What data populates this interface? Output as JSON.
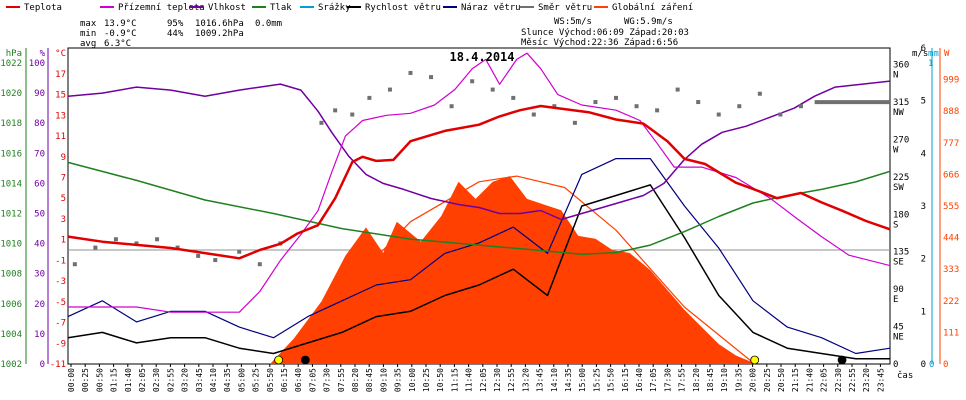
{
  "chart_data": {
    "type": "line",
    "title": "18.4.2014",
    "legend": [
      {
        "name": "Teplota",
        "color": "#e00000"
      },
      {
        "name": "Přízemní teplota",
        "color": "#d000d0"
      },
      {
        "name": "Vlhkost",
        "color": "#7000a0"
      },
      {
        "name": "Tlak",
        "color": "#208020"
      },
      {
        "name": "Srážky",
        "color": "#00a0d0"
      },
      {
        "name": "Rychlost větru",
        "color": "#000000"
      },
      {
        "name": "Náraz větru",
        "color": "#000080"
      },
      {
        "name": "Směr větru",
        "color": "#707070"
      },
      {
        "name": "Globální záření",
        "color": "#ff4000"
      }
    ],
    "stats": {
      "max": {
        "label": "max",
        "temp": "13.9°C",
        "hum": "95%",
        "press": "1016.6hPa",
        "rain": "0.0mm"
      },
      "min": {
        "label": "min",
        "temp": "-0.9°C",
        "hum": "44%",
        "press": "1009.2hPa"
      },
      "avg": {
        "label": "avg",
        "temp": "6.3°C"
      },
      "ws": "WS:5m/s",
      "wg": "WG:5.9m/s",
      "sun": "Slunce Východ:06:09  Západ:20:03",
      "moon": "Měsíc  Východ:22:36  Západ:6:56"
    },
    "axes": {
      "hpa": {
        "unit": "hPa",
        "ticks": [
          "1022",
          "1020",
          "1018",
          "1016",
          "1014",
          "1012",
          "1010",
          "1008",
          "1006",
          "1004",
          "1002"
        ],
        "range": [
          1002,
          1023
        ]
      },
      "pct": {
        "unit": "%",
        "ticks": [
          "100",
          "90",
          "80",
          "70",
          "60",
          "50",
          "40",
          "30",
          "20",
          "10",
          "0"
        ],
        "range": [
          0,
          105
        ]
      },
      "degc": {
        "unit": "°C",
        "ticks": [
          "17",
          "15",
          "13",
          "11",
          "9",
          "7",
          "5",
          "3",
          "1",
          "-1",
          "-3",
          "-5",
          "-7",
          "-9",
          "-11"
        ],
        "range": [
          -11,
          19.5
        ]
      },
      "ms": {
        "unit": "m/s",
        "ticks": [
          "6",
          "5",
          "4",
          "3",
          "2",
          "1",
          "0"
        ],
        "range": [
          0,
          6
        ]
      },
      "dir": {
        "ticks": [
          "360 N",
          "315 NW",
          "270 W",
          "225 SW",
          "180 S",
          "135 SE",
          "90 E",
          "45 NE",
          "0"
        ],
        "range": [
          0,
          380
        ]
      },
      "mm": {
        "unit": "mm",
        "sub": "1",
        "ticks": [
          "0"
        ]
      },
      "wm2": {
        "unit": "W",
        "ticks": [
          "999",
          "888",
          "777",
          "666",
          "555",
          "444",
          "333",
          "222",
          "111",
          "0"
        ],
        "range": [
          0,
          1110
        ]
      },
      "x_unit": "čas",
      "x_ticks": [
        "00:00",
        "00:25",
        "00:50",
        "01:15",
        "01:40",
        "02:05",
        "02:30",
        "02:55",
        "03:20",
        "03:45",
        "04:10",
        "04:35",
        "05:00",
        "05:25",
        "05:50",
        "06:15",
        "06:40",
        "07:05",
        "07:30",
        "07:55",
        "08:20",
        "08:45",
        "09:10",
        "09:35",
        "10:00",
        "10:25",
        "10:50",
        "11:15",
        "11:40",
        "12:05",
        "12:30",
        "12:55",
        "13:20",
        "13:45",
        "14:10",
        "14:35",
        "15:00",
        "15:25",
        "15:50",
        "16:15",
        "16:40",
        "17:05",
        "17:30",
        "17:55",
        "18:20",
        "18:45",
        "19:10",
        "19:35",
        "20:00",
        "20:25",
        "20:50",
        "21:15",
        "21:40",
        "22:05",
        "22:30",
        "22:55",
        "23:20",
        "23:45"
      ]
    },
    "series": {
      "teplota": {
        "x": [
          0,
          1,
          2,
          3,
          4,
          5,
          5.6,
          6.2,
          6.7,
          7.3,
          7.8,
          8.3,
          8.6,
          9.0,
          9.5,
          10,
          11,
          12,
          12.6,
          13.2,
          13.8,
          14.5,
          15.2,
          16,
          16.8,
          17.5,
          18,
          18.6,
          19.5,
          20,
          20.7,
          21.4,
          22,
          22.6,
          23.3,
          24
        ],
        "y": [
          1.3,
          0.8,
          0.5,
          0.2,
          -0.3,
          -0.8,
          0,
          0.6,
          1.6,
          2.4,
          5,
          8.5,
          9,
          8.6,
          8.7,
          10.5,
          11.5,
          12.1,
          12.9,
          13.5,
          13.9,
          13.6,
          13.3,
          12.6,
          12.2,
          10.5,
          8.8,
          8.3,
          6.5,
          5.9,
          5,
          5.5,
          4.6,
          3.8,
          2.8,
          2.0
        ]
      },
      "prizemni": {
        "x": [
          0,
          1,
          2,
          3,
          4,
          5,
          5.6,
          6.2,
          6.8,
          7.3,
          7.7,
          8.1,
          8.6,
          9.3,
          10,
          10.7,
          11.3,
          11.8,
          12.2,
          12.6,
          13.1,
          13.4,
          13.8,
          14.3,
          15,
          16,
          16.7,
          17.2,
          17.7,
          18.5,
          19.5,
          20.5,
          21.3,
          22,
          22.8,
          24
        ],
        "y": [
          -5.5,
          -5.5,
          -5.5,
          -6,
          -6,
          -6,
          -4,
          -1,
          1.5,
          3.8,
          7.5,
          11,
          12.5,
          13,
          13.2,
          14,
          15.5,
          17.5,
          18.4,
          16,
          18.4,
          19,
          17.5,
          15,
          14,
          13.5,
          12.5,
          10.3,
          8,
          8,
          7,
          5,
          3,
          1.3,
          -0.5,
          -1.5
        ]
      },
      "vlhkost": {
        "x": [
          0,
          1,
          2,
          3,
          4,
          5,
          5.6,
          6.2,
          6.8,
          7.3,
          7.7,
          8.2,
          8.7,
          9.2,
          9.8,
          10.6,
          11.4,
          12,
          12.6,
          13.2,
          13.8,
          14.4,
          15,
          15.6,
          16.2,
          16.8,
          17.4,
          18,
          18.5,
          19.1,
          19.8,
          20.5,
          21.2,
          21.8,
          22.4,
          23.2,
          24
        ],
        "y": [
          89,
          90,
          92,
          91,
          89,
          91,
          92,
          93,
          91,
          84,
          77,
          69,
          63,
          60,
          58,
          55,
          53,
          52,
          50,
          50,
          51,
          48,
          50,
          52,
          54,
          56,
          60,
          68,
          73,
          77,
          79,
          82,
          85,
          89,
          92,
          93,
          94
        ]
      },
      "tlak": {
        "x": [
          0,
          2,
          4,
          6,
          8,
          10,
          12,
          14,
          15,
          16,
          17,
          18,
          19,
          20,
          21,
          22,
          23,
          24
        ],
        "y": [
          1015.4,
          1014.2,
          1012.9,
          1012.0,
          1011.0,
          1010.3,
          1009.9,
          1009.5,
          1009.3,
          1009.4,
          1009.9,
          1010.8,
          1011.8,
          1012.7,
          1013.2,
          1013.6,
          1014.1,
          1014.8
        ]
      },
      "zareni": {
        "x": [
          5.9,
          6.6,
          7.4,
          8.1,
          8.7,
          9.2,
          9.6,
          10.3,
          10.9,
          11.4,
          11.9,
          12.4,
          12.9,
          13.4,
          13.9,
          14.4,
          14.9,
          15.4,
          15.9,
          16.4,
          17.0,
          17.5,
          18.0,
          18.5,
          19.0,
          19.5,
          20.1
        ],
        "y": [
          0,
          90,
          220,
          380,
          480,
          390,
          500,
          430,
          520,
          640,
          580,
          640,
          660,
          580,
          560,
          540,
          450,
          440,
          400,
          390,
          330,
          260,
          190,
          130,
          70,
          30,
          0
        ]
      },
      "zareni_teor": {
        "x": [
          6.15,
          8,
          10,
          12,
          13.1,
          14.5,
          16,
          18,
          20.05
        ],
        "y": [
          0,
          250,
          500,
          640,
          660,
          620,
          470,
          200,
          0
        ]
      },
      "rychlost": {
        "x": [
          0,
          1,
          2,
          3,
          4,
          5,
          6,
          7,
          8,
          9,
          10,
          11,
          12,
          13,
          14,
          15,
          16,
          17,
          18,
          19,
          20,
          21,
          22,
          23,
          24
        ],
        "y": [
          0.5,
          0.6,
          0.4,
          0.5,
          0.5,
          0.3,
          0.2,
          0.4,
          0.6,
          0.9,
          1.0,
          1.3,
          1.5,
          1.8,
          1.3,
          3.0,
          3.2,
          3.4,
          2.4,
          1.3,
          0.6,
          0.3,
          0.2,
          0.1,
          0.1
        ]
      },
      "naraz": {
        "x": [
          0,
          1,
          2,
          3,
          4,
          5,
          6,
          7,
          8,
          9,
          10,
          11,
          12,
          13,
          14,
          15,
          16,
          17,
          18,
          19,
          20,
          21,
          22,
          23,
          24
        ],
        "y": [
          0.9,
          1.2,
          0.8,
          1.0,
          1.0,
          0.7,
          0.5,
          0.9,
          1.2,
          1.5,
          1.6,
          2.1,
          2.3,
          2.6,
          2.1,
          3.6,
          3.9,
          3.9,
          3.0,
          2.2,
          1.2,
          0.7,
          0.5,
          0.2,
          0.3
        ]
      },
      "smer_pts": {
        "x": [
          0.2,
          0.8,
          1.4,
          2.0,
          2.6,
          3.2,
          3.8,
          4.3,
          5.0,
          5.6,
          6.2,
          7.4,
          7.8,
          8.3,
          8.8,
          9.4,
          10.0,
          10.6,
          11.2,
          11.8,
          12.4,
          13.0,
          13.6,
          14.2,
          14.8,
          15.4,
          16.0,
          16.6,
          17.2,
          17.8,
          18.4,
          19.0,
          19.6,
          20.2,
          20.8,
          21.4
        ],
        "y": [
          120,
          140,
          150,
          145,
          150,
          140,
          130,
          125,
          135,
          120,
          145,
          290,
          305,
          300,
          320,
          330,
          350,
          345,
          310,
          340,
          330,
          320,
          300,
          310,
          290,
          315,
          320,
          310,
          305,
          330,
          315,
          300,
          310,
          325,
          300,
          310
        ]
      },
      "smer_line": {
        "x": [
          21.8,
          24
        ],
        "y": [
          315,
          315
        ]
      }
    },
    "markers": [
      {
        "name": "sunrise",
        "x": 6.15,
        "color": "#ffff00"
      },
      {
        "name": "moonset",
        "x": 6.93,
        "color": "#000000"
      },
      {
        "name": "sunset",
        "x": 20.05,
        "color": "#ffff00"
      },
      {
        "name": "moonrise",
        "x": 22.6,
        "color": "#000000"
      }
    ]
  }
}
